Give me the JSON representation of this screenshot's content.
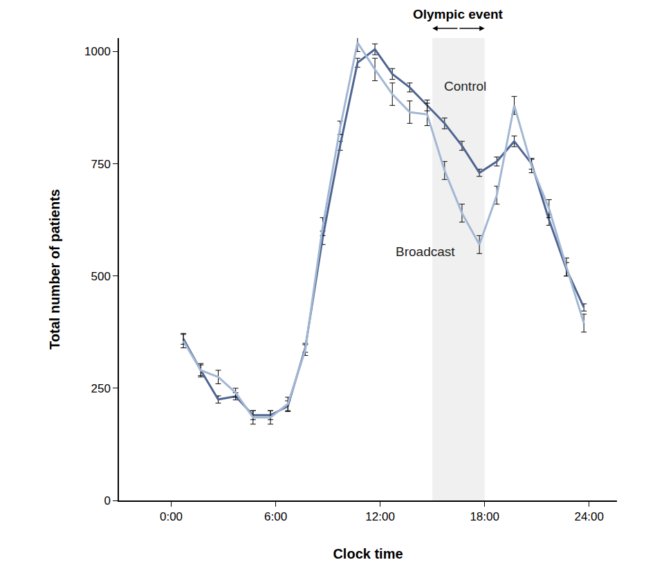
{
  "chart_data": {
    "type": "line",
    "x_label": "Clock time",
    "y_label": "Total number of patients",
    "x": [
      0.7,
      1.7,
      2.7,
      3.7,
      4.7,
      5.7,
      6.7,
      7.7,
      8.7,
      9.7,
      10.7,
      11.7,
      12.7,
      13.7,
      14.7,
      15.7,
      16.7,
      17.7,
      18.7,
      19.7,
      20.7,
      21.7,
      22.7,
      23.7
    ],
    "series": [
      {
        "name": "Control",
        "color": "#4f6591",
        "values": [
          360,
          290,
          225,
          232,
          190,
          190,
          210,
          340,
          585,
          790,
          975,
          1005,
          950,
          920,
          880,
          840,
          790,
          730,
          755,
          800,
          750,
          625,
          515,
          430
        ],
        "error": [
          12,
          12,
          8,
          8,
          10,
          10,
          12,
          10,
          15,
          10,
          10,
          12,
          12,
          10,
          12,
          12,
          10,
          8,
          10,
          12,
          12,
          12,
          15,
          8
        ]
      },
      {
        "name": "Broadcast",
        "color": "#a3b7d4",
        "values": [
          355,
          290,
          275,
          240,
          185,
          185,
          215,
          335,
          610,
          830,
          1020,
          960,
          905,
          865,
          860,
          735,
          640,
          570,
          680,
          880,
          745,
          650,
          520,
          395
        ],
        "error": [
          15,
          15,
          15,
          10,
          15,
          15,
          15,
          12,
          20,
          15,
          20,
          25,
          25,
          25,
          25,
          20,
          20,
          20,
          20,
          20,
          15,
          20,
          20,
          20
        ]
      }
    ],
    "highlight": {
      "label": "Olympic event",
      "start": 15,
      "end": 18
    },
    "xlim": [
      -3,
      25.6
    ],
    "xticks": [
      {
        "value": 0,
        "label": "0:00"
      },
      {
        "value": 6,
        "label": "6:00"
      },
      {
        "value": 12,
        "label": "12:00"
      },
      {
        "value": 18,
        "label": "18:00"
      },
      {
        "value": 24,
        "label": "24:00"
      }
    ],
    "ylim": [
      0,
      1030
    ],
    "yticks": [
      0,
      250,
      500,
      750,
      1000
    ],
    "grid": false
  }
}
